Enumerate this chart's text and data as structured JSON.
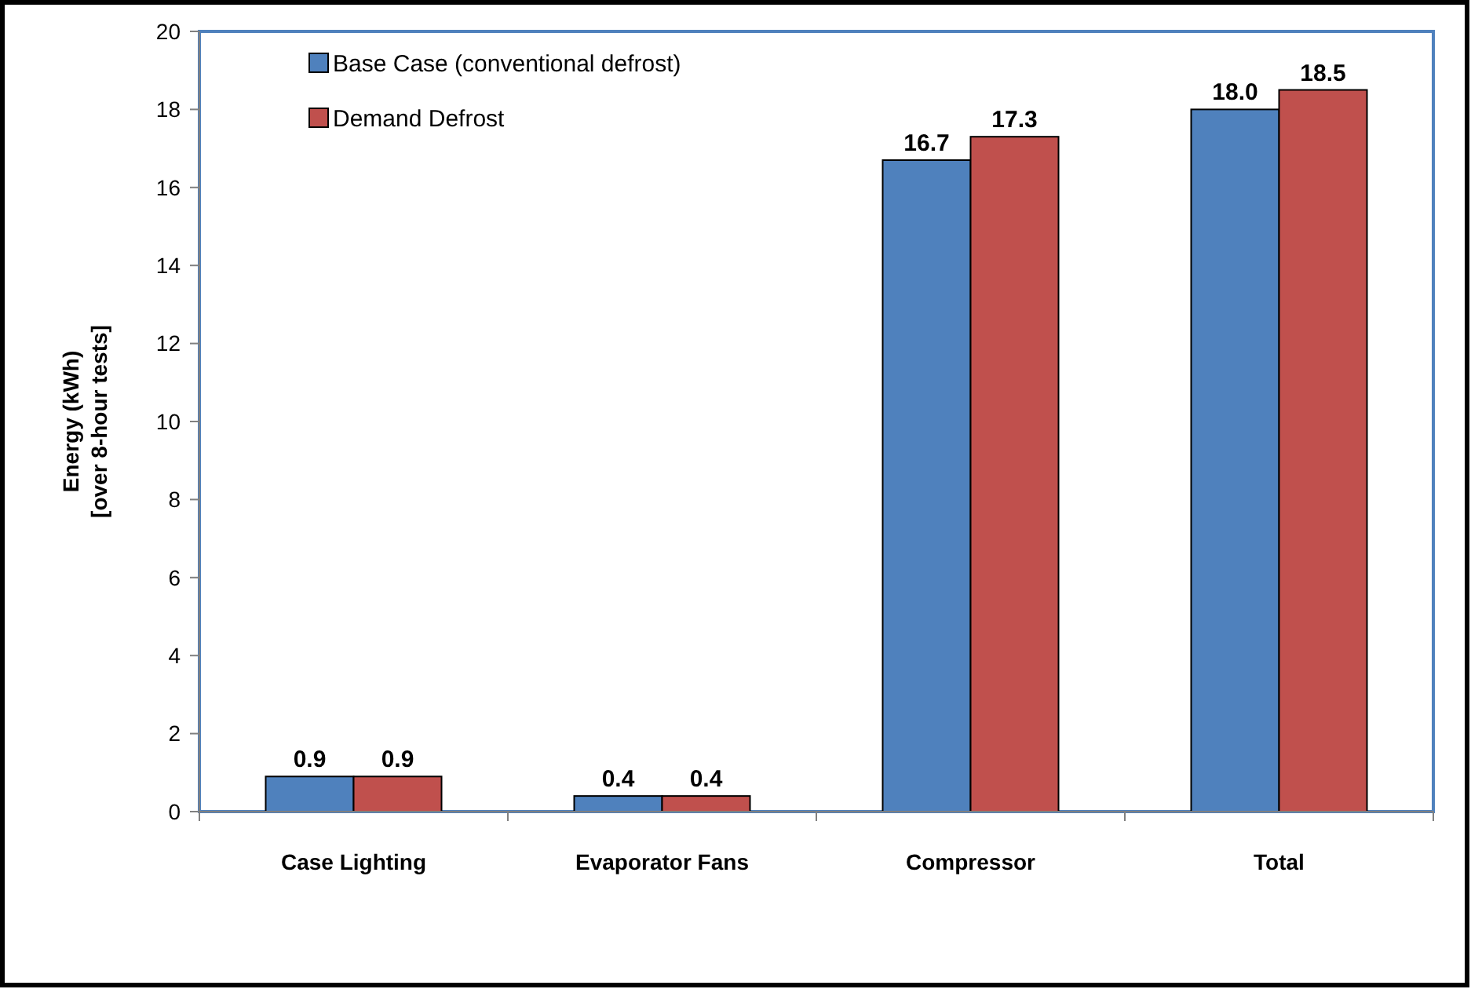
{
  "chart_data": {
    "type": "bar",
    "categories": [
      "Case Lighting",
      "Evaporator Fans",
      "Compressor",
      "Total"
    ],
    "series": [
      {
        "name": "Base Case (conventional defrost)",
        "color": "#4f81bd",
        "values": [
          0.9,
          0.4,
          16.7,
          18.0
        ],
        "value_labels": [
          "0.9",
          "0.4",
          "16.7",
          "18.0"
        ]
      },
      {
        "name": "Demand Defrost",
        "color": "#c0504d",
        "values": [
          0.9,
          0.4,
          17.3,
          18.5
        ],
        "value_labels": [
          "0.9",
          "0.4",
          "17.3",
          "18.5"
        ]
      }
    ],
    "ylabel": "Energy (kWh)\n[over 8-hour tests]",
    "ylim": [
      0,
      20
    ],
    "yticks": [
      0,
      2,
      4,
      6,
      8,
      10,
      12,
      14,
      16,
      18,
      20
    ],
    "legend": "top left",
    "grid": false
  }
}
